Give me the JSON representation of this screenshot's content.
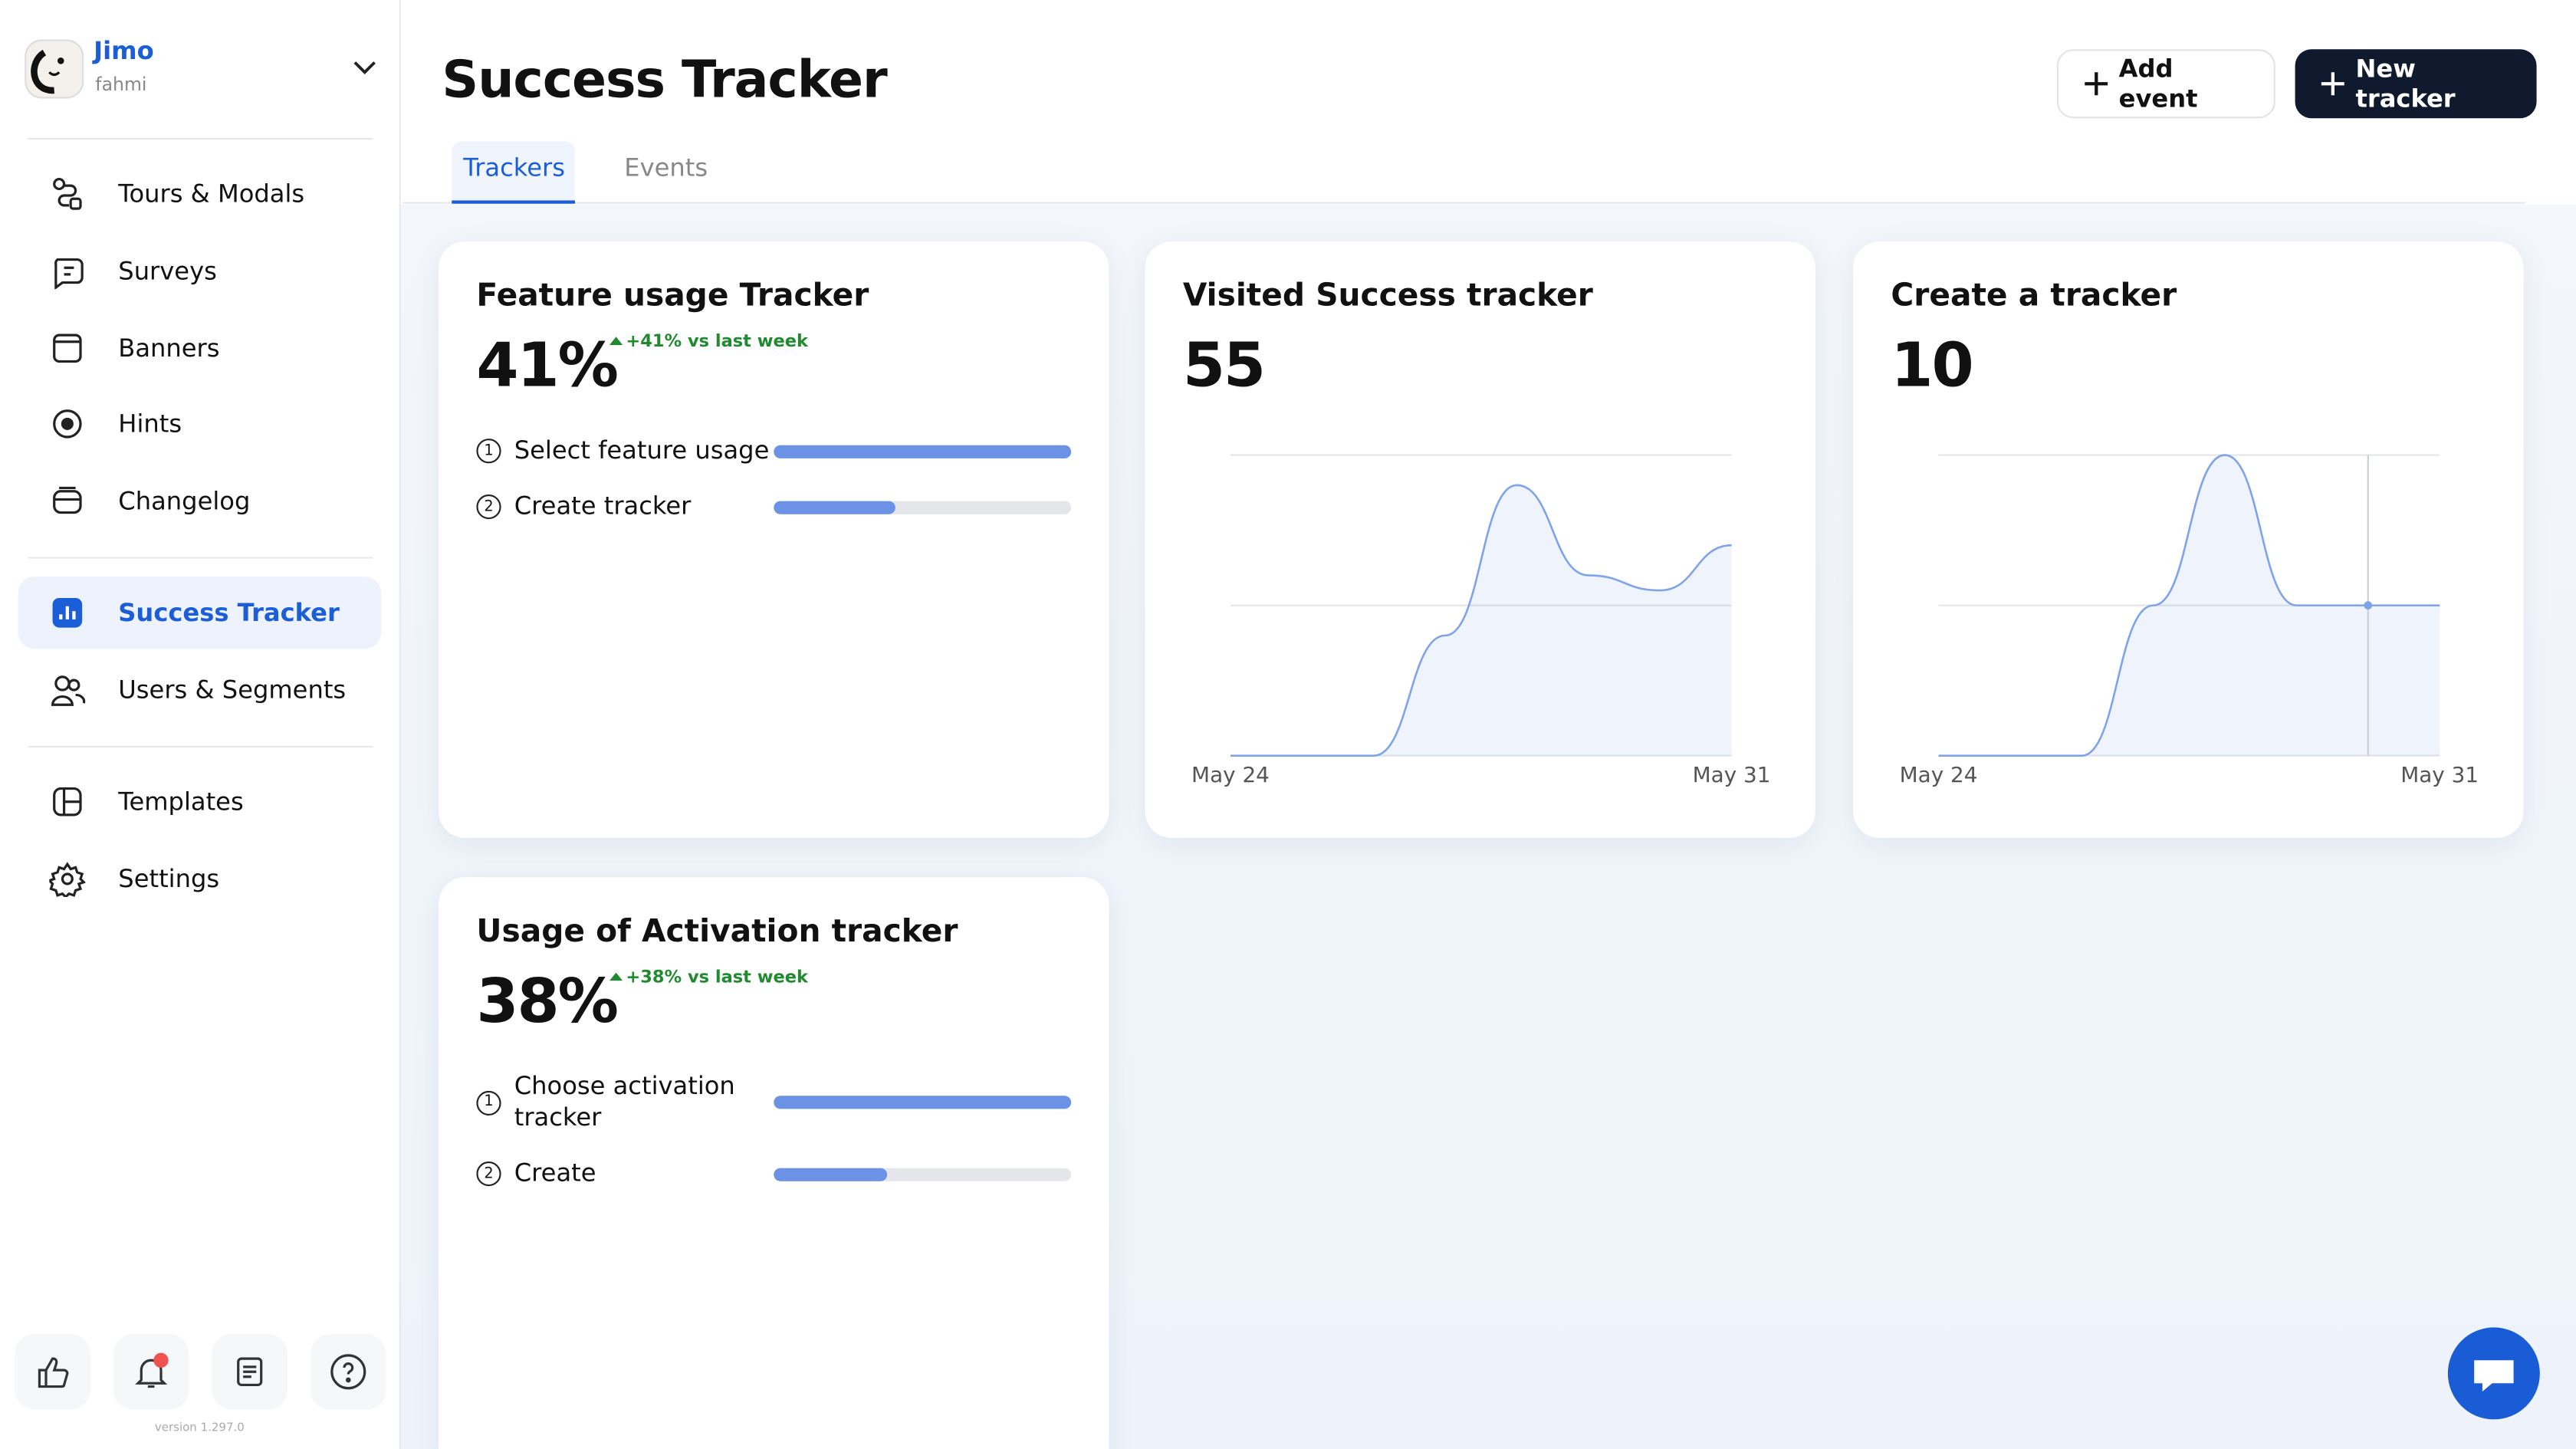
{
  "sidebar": {
    "workspace": "Jimo",
    "user": "fahmi",
    "nav": [
      [
        "Tours & Modals",
        "Surveys",
        "Banners",
        "Hints",
        "Changelog"
      ],
      [
        "Success Tracker",
        "Users & Segments"
      ],
      [
        "Templates",
        "Settings"
      ]
    ],
    "version": "version 1.297.0"
  },
  "header": {
    "title": "Success Tracker",
    "buttons": [
      "Add event",
      "New tracker"
    ],
    "tabs": [
      "Trackers",
      "Events"
    ]
  },
  "trackers": [
    {
      "type": "funnel",
      "title": "Feature usage Tracker",
      "value": "41%",
      "change": "+41% vs last week",
      "steps": [
        {
          "label": "Select feature usage",
          "value": 100
        },
        {
          "label": "Create tracker",
          "value": 41
        }
      ]
    },
    {
      "type": "line",
      "title": "Visited Success tracker",
      "value": "55",
      "chart": {
        "x": [
          "May 24",
          null,
          null,
          null,
          null,
          null,
          null,
          "May 31"
        ],
        "values": [
          0,
          0,
          0,
          8,
          18,
          12,
          11,
          14
        ],
        "ylim": [
          0,
          20
        ],
        "color": "#7ea3ea"
      }
    },
    {
      "type": "line",
      "title": "Create a tracker",
      "value": "10",
      "chart": {
        "x": [
          "May 24",
          null,
          null,
          null,
          null,
          null,
          null,
          "May 31"
        ],
        "values": [
          0,
          0,
          0,
          1,
          2,
          1,
          1,
          1
        ],
        "ylim": [
          0,
          2
        ],
        "color": "#7ea3ea"
      }
    },
    {
      "type": "funnel",
      "title": "Usage of Activation tracker",
      "value": "38%",
      "change": "+38% vs last week",
      "steps": [
        {
          "label": "Choose activation tracker",
          "value": 100
        },
        {
          "label": "Create",
          "value": 38
        }
      ]
    }
  ]
}
